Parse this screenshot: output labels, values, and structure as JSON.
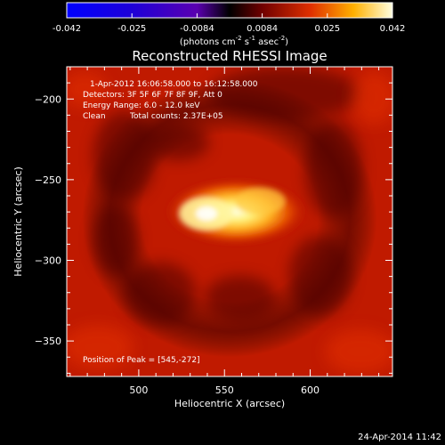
{
  "chart_data": {
    "type": "heatmap",
    "title": "Reconstructed RHESSI Image",
    "xlabel": "Heliocentric X (arcsec)",
    "ylabel": "Heliocentric Y (arcsec)",
    "xlim": [
      458,
      648
    ],
    "ylim": [
      -372,
      -180
    ],
    "x_ticks": [
      500,
      550,
      600
    ],
    "y_ticks": [
      -200,
      -250,
      -300,
      -350
    ],
    "colorbar": {
      "range": [
        -0.042,
        0.042
      ],
      "ticks": [
        "-0.042",
        "-0.025",
        "-0.0084",
        "0.0084",
        "0.025",
        "0.042"
      ],
      "unit_text": "(photons cm",
      "unit_exp1": "-2",
      "unit_mid1": " s",
      "unit_exp2": "-1",
      "unit_mid2": " asec",
      "unit_exp3": "-2",
      "unit_end": ")"
    },
    "annotations": {
      "time_range": "1-Apr-2012 16:06:58.000 to 16:12:58.000",
      "detectors": "Detectors: 3F 5F 6F 7F 8F 9F, Att 0",
      "energy": "Energy Range: 6.0 - 12.0 keV",
      "method": "Clean",
      "counts": "Total counts: 2.37E+05",
      "peak": "Position of Peak = [545,-272]"
    },
    "peak_position": [
      545,
      -272
    ],
    "peak_value": 0.042,
    "background_level": 0.015,
    "footer_date": "24-Apr-2014 11:42"
  }
}
